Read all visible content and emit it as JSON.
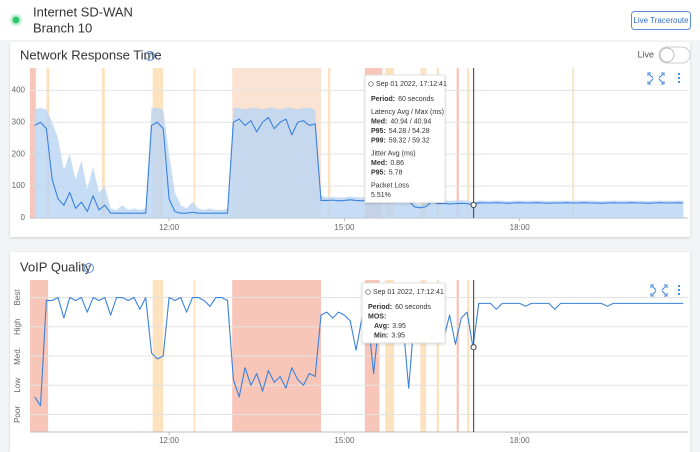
{
  "header": {
    "title": "Internet SD-WAN",
    "subtitle": "Branch 10",
    "button": "Live Traceroute"
  },
  "chart_data": [
    {
      "type": "line",
      "title": "Network Response Time",
      "live_label": "Live",
      "xlim": [
        9.62,
        20.88
      ],
      "ylim": [
        0,
        470
      ],
      "xticks": [
        {
          "value": 12,
          "label": "12:00"
        },
        {
          "value": 15,
          "label": "15:00"
        },
        {
          "value": 18,
          "label": "18:00"
        }
      ],
      "yticks": [
        0,
        100,
        200,
        300,
        400
      ],
      "grid": true,
      "x": [
        9.7,
        9.8,
        9.9,
        10,
        10.1,
        10.2,
        10.3,
        10.4,
        10.5,
        10.6,
        10.7,
        10.8,
        10.9,
        11,
        11.1,
        11.2,
        11.3,
        11.4,
        11.5,
        11.6,
        11.7,
        11.8,
        11.9,
        12,
        12.1,
        12.2,
        12.3,
        12.4,
        12.5,
        12.6,
        12.7,
        12.8,
        12.9,
        13,
        13.1,
        13.2,
        13.3,
        13.4,
        13.5,
        13.6,
        13.7,
        13.8,
        13.9,
        14,
        14.1,
        14.2,
        14.3,
        14.4,
        14.5,
        14.6,
        14.7,
        14.8,
        14.9,
        15,
        15.1,
        15.2,
        15.3,
        15.4,
        15.5,
        15.6,
        15.7,
        15.8,
        15.9,
        16,
        16.1,
        16.2,
        16.3,
        16.4,
        16.5,
        16.6,
        16.7,
        16.8,
        16.9,
        17,
        17.1,
        17.2,
        17.3,
        17.4,
        17.5,
        17.6,
        17.7,
        17.8,
        17.9,
        18,
        18.1,
        18.2,
        18.3,
        18.4,
        18.5,
        18.6,
        18.7,
        18.8,
        18.9,
        19,
        19.1,
        19.2,
        19.3,
        19.4,
        19.5,
        19.6,
        19.7,
        19.8,
        19.9,
        20,
        20.1,
        20.2,
        20.3,
        20.4,
        20.5,
        20.6,
        20.7,
        20.8
      ],
      "series": [
        {
          "color": "#b9d4f3",
          "fill": true,
          "values": [
            340,
            345,
            340,
            300,
            250,
            150,
            200,
            120,
            180,
            90,
            160,
            80,
            100,
            30,
            25,
            40,
            25,
            30,
            25,
            30,
            345,
            345,
            340,
            200,
            80,
            40,
            30,
            50,
            30,
            25,
            30,
            25,
            25,
            30,
            345,
            345,
            340,
            345,
            345,
            340,
            345,
            345,
            340,
            345,
            345,
            340,
            345,
            345,
            340,
            70,
            65,
            66,
            64,
            65,
            67,
            65,
            64,
            66,
            65,
            65,
            66,
            64,
            65,
            65,
            64,
            45,
            42,
            46,
            60,
            55,
            56,
            54,
            55,
            56,
            55,
            50,
            55,
            54,
            54,
            55,
            54,
            53,
            54,
            55,
            54,
            54,
            55,
            54,
            53,
            54,
            54,
            55,
            54,
            54,
            55,
            54,
            54,
            53,
            54,
            55,
            54,
            54,
            55,
            54,
            54,
            53,
            54,
            55,
            54,
            54,
            55,
            54
          ]
        },
        {
          "color": "#3b82dc",
          "values": [
            290,
            300,
            280,
            120,
            60,
            40,
            80,
            30,
            50,
            20,
            70,
            25,
            40,
            15,
            15,
            15,
            15,
            15,
            15,
            15,
            290,
            300,
            280,
            60,
            20,
            15,
            15,
            18,
            15,
            15,
            15,
            15,
            15,
            15,
            300,
            310,
            290,
            305,
            270,
            300,
            315,
            280,
            300,
            310,
            260,
            300,
            305,
            290,
            295,
            55,
            55,
            56,
            54,
            55,
            57,
            55,
            54,
            56,
            55,
            55,
            56,
            54,
            55,
            55,
            54,
            35,
            32,
            36,
            52,
            45,
            46,
            44,
            45,
            46,
            45,
            41,
            48,
            47,
            47,
            48,
            47,
            46,
            47,
            48,
            47,
            47,
            48,
            47,
            46,
            47,
            47,
            48,
            47,
            47,
            48,
            47,
            47,
            46,
            47,
            48,
            47,
            47,
            48,
            47,
            47,
            46,
            47,
            48,
            47,
            47,
            48,
            47
          ]
        }
      ],
      "events": [
        {
          "start": 9.62,
          "end": 9.72,
          "color": "#f8c6b8"
        },
        {
          "start": 9.9,
          "end": 9.95,
          "color": "#fde2c0"
        },
        {
          "start": 10.85,
          "end": 10.9,
          "color": "#fde2c0"
        },
        {
          "start": 11.72,
          "end": 11.9,
          "color": "#fde2c0"
        },
        {
          "start": 12.42,
          "end": 12.45,
          "color": "#fde2c0"
        },
        {
          "start": 13.08,
          "end": 14.6,
          "color": "#fbe3d4"
        },
        {
          "start": 14.72,
          "end": 14.76,
          "color": "#fde2c0"
        },
        {
          "start": 15.35,
          "end": 15.65,
          "color": "#f8c6b8"
        },
        {
          "start": 15.7,
          "end": 15.85,
          "color": "#fde2c0"
        },
        {
          "start": 16.3,
          "end": 16.4,
          "color": "#fde2c0"
        },
        {
          "start": 16.58,
          "end": 16.62,
          "color": "#fde2c0"
        },
        {
          "start": 16.92,
          "end": 16.96,
          "color": "#f8c6b8"
        },
        {
          "start": 17.1,
          "end": 17.14,
          "color": "#fde2c0"
        },
        {
          "start": 18.9,
          "end": 18.93,
          "color": "#fde2c0"
        }
      ],
      "cursor": {
        "x": 17.211,
        "y": 40.94
      },
      "tooltip": {
        "time": "Sep 01 2022, 17:12:41",
        "rows": [
          {
            "label": "Period:",
            "value": "60 seconds"
          },
          {
            "heading": "Latency Avg / Max (ms)"
          },
          {
            "label": "Med:",
            "value": "40.94 / 40.94"
          },
          {
            "label": "P95:",
            "value": "54.28 / 54.28"
          },
          {
            "label": "P99:",
            "value": "59.32 / 59.32"
          },
          {
            "heading": "Jitter Avg (ms)"
          },
          {
            "label": "Med:",
            "value": "0.86"
          },
          {
            "label": "P95:",
            "value": "5.78"
          },
          {
            "heading": "Packet Loss"
          },
          {
            "value": "5.51%"
          }
        ]
      }
    },
    {
      "type": "line",
      "title": "VoIP Quality",
      "xlim": [
        9.62,
        20.88
      ],
      "ylim": [
        0.4,
        5.6
      ],
      "xticks": [
        {
          "value": 12,
          "label": "12:00"
        },
        {
          "value": 15,
          "label": "15:00"
        },
        {
          "value": 18,
          "label": "18:00"
        }
      ],
      "yticks": [
        {
          "value": 1,
          "label": "Poor"
        },
        {
          "value": 2,
          "label": "Low"
        },
        {
          "value": 3,
          "label": "Med."
        },
        {
          "value": 4,
          "label": "High"
        },
        {
          "value": 5,
          "label": "Best"
        }
      ],
      "grid": true,
      "x": [
        9.7,
        9.8,
        9.9,
        10,
        10.1,
        10.2,
        10.3,
        10.4,
        10.5,
        10.6,
        10.7,
        10.8,
        10.9,
        11,
        11.1,
        11.2,
        11.3,
        11.4,
        11.5,
        11.6,
        11.7,
        11.8,
        11.9,
        12,
        12.1,
        12.2,
        12.3,
        12.4,
        12.5,
        12.6,
        12.7,
        12.8,
        12.9,
        13,
        13.1,
        13.2,
        13.3,
        13.4,
        13.5,
        13.6,
        13.7,
        13.8,
        13.9,
        14,
        14.1,
        14.2,
        14.3,
        14.4,
        14.5,
        14.6,
        14.7,
        14.8,
        14.9,
        15,
        15.1,
        15.2,
        15.3,
        15.4,
        15.5,
        15.6,
        15.7,
        15.8,
        15.9,
        16,
        16.1,
        16.2,
        16.3,
        16.4,
        16.5,
        16.6,
        16.7,
        16.8,
        16.9,
        17,
        17.1,
        17.2,
        17.3,
        17.4,
        17.5,
        17.6,
        17.7,
        17.8,
        17.9,
        18,
        18.1,
        18.2,
        18.3,
        18.4,
        18.5,
        18.6,
        18.7,
        18.8,
        18.9,
        19,
        19.1,
        19.2,
        19.3,
        19.4,
        19.5,
        19.6,
        19.7,
        19.8,
        19.9,
        20,
        20.1,
        20.2,
        20.3,
        20.4,
        20.5,
        20.6,
        20.7,
        20.8
      ],
      "series": [
        {
          "color": "#3b82dc",
          "values": [
            1.6,
            1.3,
            4.9,
            4.9,
            5.0,
            4.3,
            5.0,
            4.9,
            5.0,
            4.5,
            5.0,
            4.9,
            5.0,
            4.4,
            5.0,
            5.0,
            4.9,
            5.0,
            4.6,
            5.0,
            3.1,
            2.9,
            3.0,
            5.0,
            4.9,
            5.0,
            4.5,
            5.0,
            5.0,
            4.9,
            4.7,
            5.0,
            5.0,
            4.9,
            2.2,
            1.6,
            2.6,
            2.0,
            2.4,
            1.8,
            2.5,
            2.1,
            2.3,
            1.9,
            2.6,
            2.2,
            2.0,
            2.4,
            2.3,
            4.4,
            4.5,
            4.3,
            4.5,
            4.4,
            4.2,
            3.2,
            4.3,
            4.4,
            2.4,
            4.3,
            3.8,
            4.4,
            4.3,
            4.2,
            1.9,
            4.4,
            4.3,
            4.0,
            4.4,
            4.5,
            3.6,
            4.4,
            3.4,
            4.3,
            4.5,
            3.3,
            4.8,
            4.8,
            4.8,
            4.6,
            4.8,
            4.8,
            4.8,
            4.8,
            4.7,
            4.8,
            4.8,
            4.8,
            4.8,
            4.6,
            4.8,
            4.8,
            4.8,
            4.8,
            4.8,
            4.8,
            4.8,
            4.8,
            4.7,
            4.8,
            4.8,
            4.8,
            4.8,
            4.8,
            4.8,
            4.8,
            4.8,
            4.8,
            4.8,
            4.8,
            4.8,
            4.8
          ]
        }
      ],
      "events": [
        {
          "start": 9.62,
          "end": 9.93,
          "color": "#f8c6b8"
        },
        {
          "start": 11.72,
          "end": 11.9,
          "color": "#fde2c0"
        },
        {
          "start": 12.42,
          "end": 12.45,
          "color": "#fde2c0"
        },
        {
          "start": 13.08,
          "end": 14.6,
          "color": "#f8c6b8"
        },
        {
          "start": 15.35,
          "end": 15.6,
          "color": "#f8c6b8"
        },
        {
          "start": 15.7,
          "end": 15.85,
          "color": "#fde2c0"
        },
        {
          "start": 16.3,
          "end": 16.4,
          "color": "#fde2c0"
        },
        {
          "start": 16.58,
          "end": 16.62,
          "color": "#fde2c0"
        },
        {
          "start": 16.92,
          "end": 16.96,
          "color": "#f8c6b8"
        },
        {
          "start": 17.1,
          "end": 17.14,
          "color": "#fde2c0"
        }
      ],
      "cursor": {
        "x": 17.211,
        "y": 3.3
      },
      "tooltip": {
        "time": "Sep 01 2022, 17:12:41",
        "rows": [
          {
            "label": "Period:",
            "value": "60 seconds"
          },
          {
            "label": "MOS:"
          },
          {
            "label": "Avg:",
            "value": "3.95",
            "indent": true
          },
          {
            "label": "Min:",
            "value": "3.95",
            "indent": true
          }
        ]
      }
    }
  ]
}
